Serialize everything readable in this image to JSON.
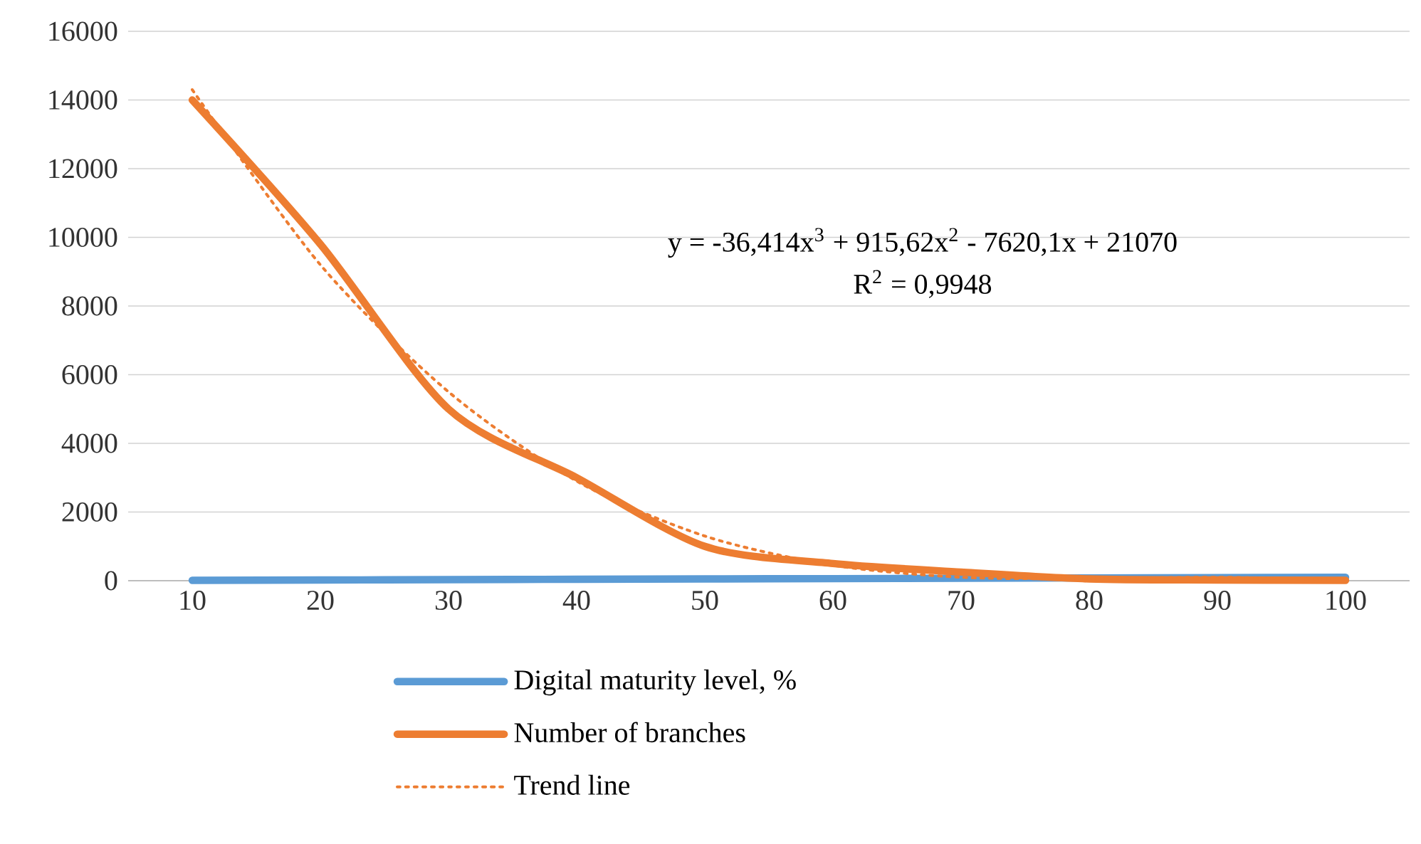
{
  "chart_data": {
    "type": "line",
    "categories": [
      "10",
      "20",
      "30",
      "40",
      "50",
      "60",
      "70",
      "80",
      "90",
      "100"
    ],
    "series": [
      {
        "name": "Digital maturity level, %",
        "color": "#5b9bd5",
        "values": [
          10,
          20,
          30,
          40,
          50,
          60,
          70,
          80,
          90,
          100
        ],
        "line_style": "solid"
      },
      {
        "name": "Number of branches",
        "color": "#ed7d31",
        "values": [
          14000,
          9800,
          5000,
          3000,
          1000,
          500,
          250,
          50,
          20,
          10
        ],
        "line_style": "solid"
      },
      {
        "name": "Trend line",
        "color": "#ed7d31",
        "values": [
          14300,
          9200,
          5500,
          2900,
          1300,
          450,
          100,
          60,
          100,
          20
        ],
        "line_style": "dotted"
      }
    ],
    "ylim": [
      0,
      16000
    ],
    "yticks": [
      0,
      2000,
      4000,
      6000,
      8000,
      10000,
      12000,
      14000,
      16000
    ],
    "grid": "y",
    "legend": "bottom",
    "marker": "none",
    "annotations": [
      "y = -36,414x$^{3}$ + 915,62x$^{2}$ - 7620,1x + 21070",
      "R$^{2}$ = 0,9948"
    ]
  }
}
